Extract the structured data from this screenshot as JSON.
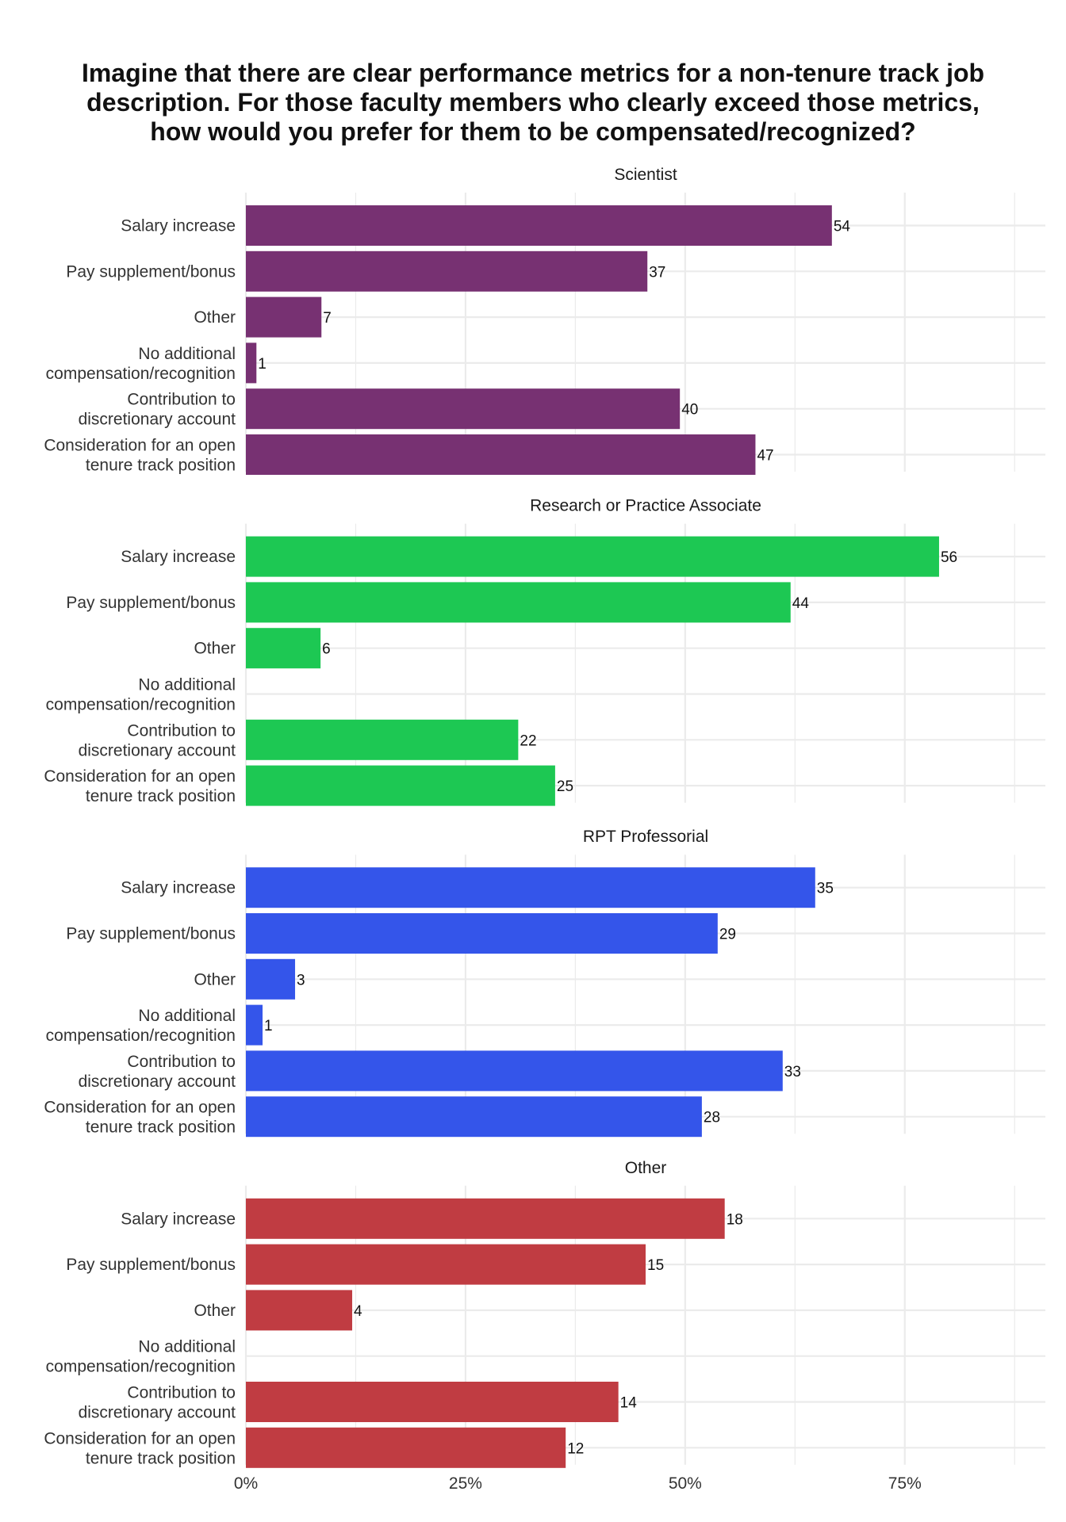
{
  "chart_data": {
    "type": "bar",
    "orientation": "horizontal",
    "title_lines": [
      "Imagine that there are clear performance metrics for a non-tenure track job",
      "description. For those faculty members who clearly exceed those metrics,",
      "how would you prefer for them to be compensated/recognized?"
    ],
    "categories": [
      [
        "Salary increase"
      ],
      [
        "Pay supplement/bonus"
      ],
      [
        "Other"
      ],
      [
        "No additional",
        "compensation/recognition"
      ],
      [
        "Contribution to",
        "discretionary account"
      ],
      [
        "Consideration for an open",
        "tenure track position"
      ]
    ],
    "x_axis": {
      "range": [
        0,
        91
      ],
      "ticks": [
        0,
        25,
        50,
        75
      ],
      "tick_labels": [
        "0%",
        "25%",
        "50%",
        "75%"
      ],
      "grid_step": 12.5
    },
    "grid": true,
    "legend": "none",
    "panels": [
      {
        "name": "Scientist",
        "color": "#773172",
        "counts": [
          54,
          37,
          7,
          1,
          40,
          47
        ],
        "percent": [
          66.7,
          45.7,
          8.6,
          1.2,
          49.4,
          58.0
        ]
      },
      {
        "name": "Research or Practice Associate",
        "color": "#1DC853",
        "counts": [
          56,
          44,
          6,
          null,
          22,
          25
        ],
        "percent": [
          78.9,
          62.0,
          8.5,
          null,
          31.0,
          35.2
        ]
      },
      {
        "name": "RPT Professorial",
        "color": "#3455EA",
        "counts": [
          35,
          29,
          3,
          1,
          33,
          28
        ],
        "percent": [
          64.8,
          53.7,
          5.6,
          1.9,
          61.1,
          51.9
        ]
      },
      {
        "name": "Other",
        "color": "#C03C42",
        "counts": [
          18,
          15,
          4,
          null,
          14,
          12
        ],
        "percent": [
          54.5,
          45.5,
          12.1,
          null,
          42.4,
          36.4
        ]
      }
    ]
  }
}
